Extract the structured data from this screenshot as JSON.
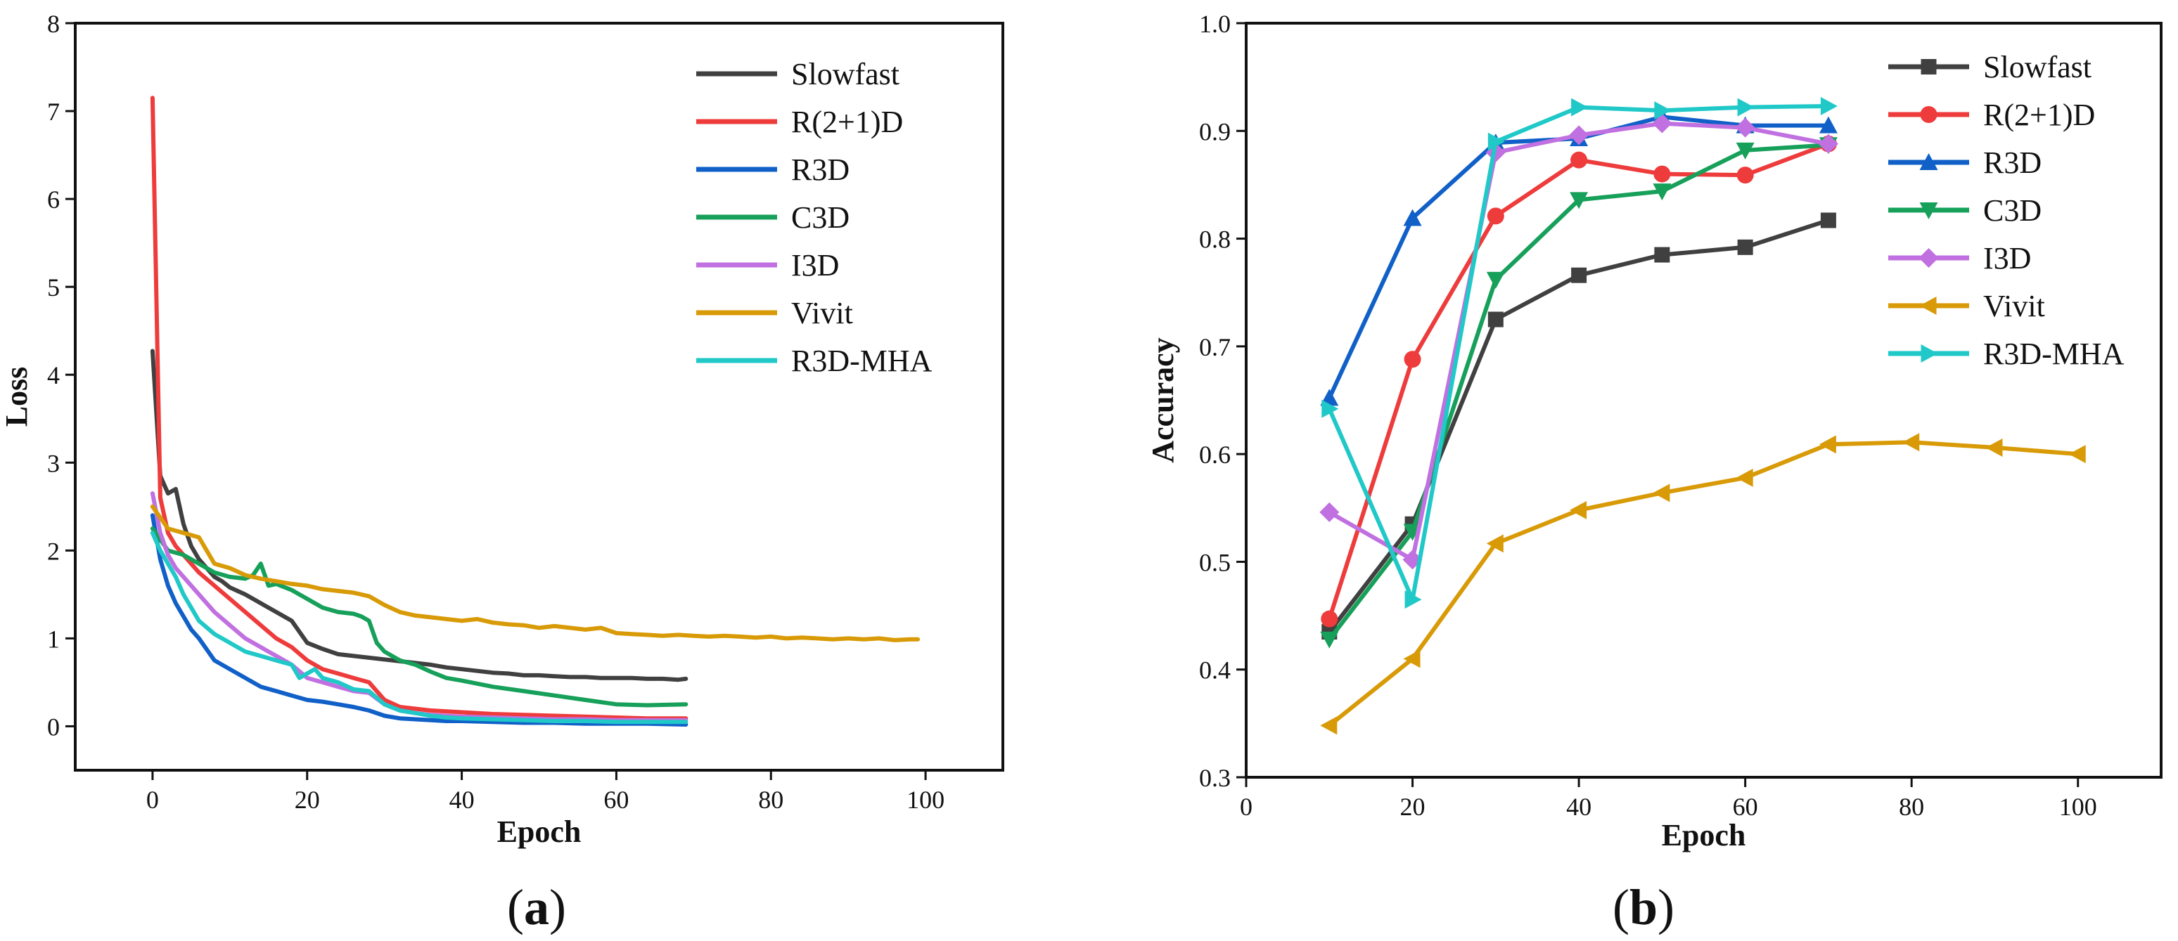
{
  "panels": {
    "a": {
      "label_prefix": "(",
      "label_letter": "a",
      "label_suffix": ")"
    },
    "b": {
      "label_prefix": "(",
      "label_letter": "b",
      "label_suffix": ")"
    }
  },
  "chart_data": [
    {
      "id": "a",
      "type": "line",
      "title": "",
      "xlabel": "Epoch",
      "ylabel": "Loss",
      "xlim": [
        -10,
        110
      ],
      "ylim": [
        -0.5,
        8
      ],
      "xticks": [
        0,
        20,
        40,
        60,
        80,
        100
      ],
      "yticks": [
        0,
        1,
        2,
        3,
        4,
        5,
        6,
        7,
        8
      ],
      "xtick_labels": [
        "0",
        "20",
        "40",
        "60",
        "80",
        "100"
      ],
      "ytick_labels": [
        "0",
        "1",
        "2",
        "3",
        "4",
        "5",
        "6",
        "7",
        "8"
      ],
      "legend_position": "top-right",
      "series": [
        {
          "name": "Slowfast",
          "color": "#404040",
          "x": [
            0,
            1,
            2,
            3,
            4,
            5,
            6,
            7,
            8,
            9,
            10,
            12,
            14,
            16,
            18,
            20,
            22,
            24,
            26,
            28,
            30,
            32,
            34,
            36,
            38,
            40,
            42,
            44,
            46,
            48,
            50,
            52,
            54,
            56,
            58,
            60,
            62,
            64,
            66,
            68,
            69
          ],
          "y": [
            4.27,
            2.85,
            2.65,
            2.7,
            2.3,
            2.05,
            1.9,
            1.8,
            1.7,
            1.65,
            1.58,
            1.5,
            1.4,
            1.3,
            1.2,
            0.95,
            0.88,
            0.82,
            0.8,
            0.78,
            0.76,
            0.74,
            0.72,
            0.7,
            0.67,
            0.65,
            0.63,
            0.61,
            0.6,
            0.58,
            0.58,
            0.57,
            0.56,
            0.56,
            0.55,
            0.55,
            0.55,
            0.54,
            0.54,
            0.53,
            0.54
          ]
        },
        {
          "name": "R(2+1)D",
          "color": "#ee3b3b",
          "x": [
            0,
            1,
            2,
            3,
            4,
            5,
            6,
            8,
            10,
            12,
            14,
            16,
            18,
            20,
            22,
            24,
            26,
            28,
            30,
            32,
            34,
            36,
            38,
            40,
            44,
            48,
            52,
            56,
            60,
            64,
            69
          ],
          "y": [
            7.15,
            2.6,
            2.2,
            2.05,
            1.95,
            1.85,
            1.75,
            1.6,
            1.45,
            1.3,
            1.15,
            1.0,
            0.9,
            0.75,
            0.65,
            0.6,
            0.55,
            0.5,
            0.3,
            0.22,
            0.2,
            0.18,
            0.17,
            0.16,
            0.14,
            0.13,
            0.12,
            0.11,
            0.1,
            0.09,
            0.09
          ]
        },
        {
          "name": "R3D",
          "color": "#1060c8",
          "x": [
            0,
            1,
            2,
            3,
            4,
            5,
            6,
            8,
            10,
            12,
            14,
            16,
            18,
            20,
            22,
            24,
            26,
            28,
            30,
            32,
            34,
            36,
            38,
            40,
            44,
            48,
            52,
            56,
            60,
            64,
            69
          ],
          "y": [
            2.4,
            1.9,
            1.6,
            1.4,
            1.25,
            1.1,
            1.0,
            0.75,
            0.65,
            0.55,
            0.45,
            0.4,
            0.35,
            0.3,
            0.28,
            0.25,
            0.22,
            0.18,
            0.12,
            0.09,
            0.08,
            0.07,
            0.06,
            0.06,
            0.05,
            0.04,
            0.04,
            0.03,
            0.03,
            0.03,
            0.02
          ]
        },
        {
          "name": "C3D",
          "color": "#16a05a",
          "x": [
            0,
            2,
            4,
            6,
            8,
            10,
            12,
            13,
            14,
            15,
            16,
            18,
            20,
            22,
            24,
            26,
            27,
            28,
            29,
            30,
            32,
            34,
            36,
            38,
            40,
            44,
            48,
            52,
            56,
            60,
            64,
            69
          ],
          "y": [
            2.25,
            2.0,
            1.95,
            1.85,
            1.75,
            1.7,
            1.68,
            1.72,
            1.85,
            1.6,
            1.62,
            1.55,
            1.45,
            1.35,
            1.3,
            1.28,
            1.25,
            1.2,
            0.95,
            0.85,
            0.75,
            0.7,
            0.62,
            0.55,
            0.52,
            0.45,
            0.4,
            0.35,
            0.3,
            0.25,
            0.24,
            0.25
          ]
        },
        {
          "name": "I3D",
          "color": "#c070e0",
          "x": [
            0,
            1,
            2,
            3,
            4,
            5,
            6,
            8,
            10,
            12,
            14,
            16,
            18,
            20,
            22,
            24,
            26,
            28,
            30,
            32,
            34,
            36,
            38,
            40,
            44,
            48,
            52,
            56,
            60,
            64,
            69
          ],
          "y": [
            2.65,
            2.2,
            1.95,
            1.8,
            1.7,
            1.6,
            1.5,
            1.3,
            1.15,
            1.0,
            0.9,
            0.8,
            0.7,
            0.55,
            0.5,
            0.45,
            0.4,
            0.38,
            0.25,
            0.18,
            0.15,
            0.13,
            0.12,
            0.11,
            0.1,
            0.09,
            0.08,
            0.08,
            0.07,
            0.07,
            0.07
          ]
        },
        {
          "name": "Vivit",
          "color": "#d89a06",
          "x": [
            0,
            2,
            4,
            6,
            8,
            10,
            12,
            14,
            16,
            18,
            20,
            22,
            24,
            26,
            28,
            30,
            32,
            34,
            36,
            38,
            40,
            42,
            44,
            46,
            48,
            50,
            52,
            54,
            56,
            58,
            60,
            62,
            64,
            66,
            68,
            70,
            72,
            74,
            76,
            78,
            80,
            82,
            84,
            86,
            88,
            90,
            92,
            94,
            96,
            98,
            99
          ],
          "y": [
            2.5,
            2.25,
            2.2,
            2.15,
            1.85,
            1.8,
            1.72,
            1.68,
            1.65,
            1.62,
            1.6,
            1.56,
            1.54,
            1.52,
            1.48,
            1.38,
            1.3,
            1.26,
            1.24,
            1.22,
            1.2,
            1.22,
            1.18,
            1.16,
            1.15,
            1.12,
            1.14,
            1.12,
            1.1,
            1.12,
            1.06,
            1.05,
            1.04,
            1.03,
            1.04,
            1.03,
            1.02,
            1.03,
            1.02,
            1.01,
            1.02,
            1.0,
            1.01,
            1.0,
            0.99,
            1.0,
            0.99,
            1.0,
            0.98,
            0.99,
            0.99
          ]
        },
        {
          "name": "R3D-MHA",
          "color": "#20c8c8",
          "x": [
            0,
            1,
            2,
            3,
            4,
            5,
            6,
            8,
            10,
            12,
            14,
            16,
            18,
            19,
            20,
            21,
            22,
            24,
            26,
            28,
            30,
            32,
            34,
            36,
            38,
            40,
            44,
            48,
            52,
            56,
            60,
            64,
            69
          ],
          "y": [
            2.2,
            2.0,
            1.85,
            1.7,
            1.5,
            1.35,
            1.2,
            1.05,
            0.95,
            0.85,
            0.8,
            0.75,
            0.7,
            0.55,
            0.6,
            0.65,
            0.55,
            0.5,
            0.42,
            0.4,
            0.25,
            0.18,
            0.15,
            0.12,
            0.1,
            0.09,
            0.08,
            0.07,
            0.06,
            0.06,
            0.05,
            0.05,
            0.05
          ]
        }
      ]
    },
    {
      "id": "b",
      "type": "line",
      "title": "",
      "xlabel": "Epoch",
      "ylabel": "Accuracy",
      "xlim": [
        0,
        110
      ],
      "ylim": [
        0.3,
        1.0
      ],
      "xticks": [
        0,
        20,
        40,
        60,
        80,
        100
      ],
      "yticks": [
        0.3,
        0.4,
        0.5,
        0.6,
        0.7,
        0.8,
        0.9,
        1.0
      ],
      "xtick_labels": [
        "0",
        "20",
        "40",
        "60",
        "80",
        "100"
      ],
      "ytick_labels": [
        "0.3",
        "0.4",
        "0.5",
        "0.6",
        "0.7",
        "0.8",
        "0.9",
        "1.0"
      ],
      "legend_position": "top-right",
      "series": [
        {
          "name": "Slowfast",
          "color": "#404040",
          "marker": "square",
          "x": [
            10,
            20,
            30,
            40,
            50,
            60,
            70
          ],
          "y": [
            0.435,
            0.535,
            0.725,
            0.766,
            0.785,
            0.792,
            0.817
          ]
        },
        {
          "name": "R(2+1)D",
          "color": "#ee3b3b",
          "marker": "circle",
          "x": [
            10,
            20,
            30,
            40,
            50,
            60,
            70
          ],
          "y": [
            0.447,
            0.688,
            0.821,
            0.873,
            0.86,
            0.859,
            0.888
          ]
        },
        {
          "name": "R3D",
          "color": "#1060c8",
          "marker": "triangle-up",
          "x": [
            10,
            20,
            30,
            40,
            50,
            60,
            70
          ],
          "y": [
            0.652,
            0.819,
            0.889,
            0.893,
            0.913,
            0.905,
            0.905
          ]
        },
        {
          "name": "C3D",
          "color": "#16a05a",
          "marker": "triangle-down",
          "x": [
            10,
            20,
            30,
            40,
            50,
            60,
            70
          ],
          "y": [
            0.428,
            0.528,
            0.762,
            0.836,
            0.844,
            0.882,
            0.887
          ]
        },
        {
          "name": "I3D",
          "color": "#c070e0",
          "marker": "diamond",
          "x": [
            10,
            20,
            30,
            40,
            50,
            60,
            70
          ],
          "y": [
            0.546,
            0.502,
            0.88,
            0.896,
            0.907,
            0.903,
            0.888
          ]
        },
        {
          "name": "Vivit",
          "color": "#d89a06",
          "marker": "triangle-left",
          "x": [
            10,
            20,
            30,
            40,
            50,
            60,
            70,
            80,
            90,
            100
          ],
          "y": [
            0.348,
            0.41,
            0.517,
            0.548,
            0.564,
            0.578,
            0.609,
            0.611,
            0.606,
            0.6
          ]
        },
        {
          "name": "R3D-MHA",
          "color": "#20c8c8",
          "marker": "triangle-right",
          "x": [
            10,
            20,
            30,
            40,
            50,
            60,
            70
          ],
          "y": [
            0.642,
            0.465,
            0.89,
            0.922,
            0.919,
            0.922,
            0.923
          ]
        }
      ]
    }
  ]
}
